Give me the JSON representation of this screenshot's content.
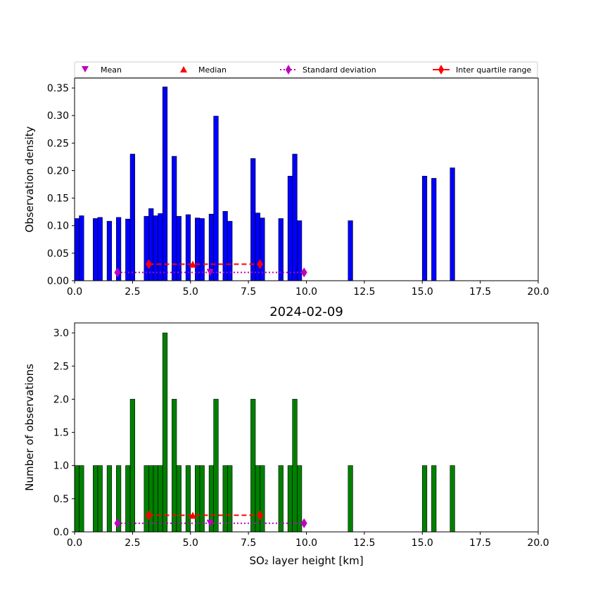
{
  "chart_data": [
    {
      "type": "bar",
      "title": "",
      "xlabel": "",
      "ylabel": "Observation density",
      "xlim": [
        0,
        20
      ],
      "ylim": [
        0,
        0.368
      ],
      "xticks": [
        "0.0",
        "2.5",
        "5.0",
        "7.5",
        "10.0",
        "12.5",
        "15.0",
        "17.5",
        "20.0"
      ],
      "xtick_values": [
        0,
        2.5,
        5,
        7.5,
        10,
        12.5,
        15,
        17.5,
        20
      ],
      "yticks": [
        "0.00",
        "0.05",
        "0.10",
        "0.15",
        "0.20",
        "0.25",
        "0.30",
        "0.35"
      ],
      "ytick_values": [
        0,
        0.05,
        0.1,
        0.15,
        0.2,
        0.25,
        0.3,
        0.35
      ],
      "bar_width": 0.2,
      "bar_color": "#0000ff",
      "bar_x": [
        0.1,
        0.3,
        0.9,
        1.1,
        1.5,
        1.9,
        2.3,
        2.5,
        3.1,
        3.3,
        3.5,
        3.7,
        3.9,
        4.3,
        4.5,
        4.9,
        5.3,
        5.5,
        5.9,
        6.1,
        6.5,
        6.7,
        7.7,
        7.9,
        8.1,
        8.9,
        9.3,
        9.5,
        9.7,
        11.9,
        15.1,
        15.5,
        16.3
      ],
      "values": [
        0.113,
        0.118,
        0.113,
        0.115,
        0.108,
        0.115,
        0.112,
        0.23,
        0.117,
        0.131,
        0.118,
        0.122,
        0.352,
        0.226,
        0.117,
        0.12,
        0.114,
        0.113,
        0.121,
        0.299,
        0.126,
        0.108,
        0.222,
        0.123,
        0.114,
        0.113,
        0.19,
        0.23,
        0.109,
        0.109,
        0.19,
        0.186,
        0.205
      ],
      "stats": {
        "mean": {
          "x": 5.85,
          "y": 0.015
        },
        "median": {
          "x": 5.1,
          "y": 0.03
        },
        "std": {
          "x": [
            1.85,
            9.9
          ],
          "y": 0.015
        },
        "iqr": {
          "x": [
            3.2,
            8.0
          ],
          "y": 0.03
        }
      }
    },
    {
      "type": "bar",
      "title": "2024-02-09",
      "xlabel": "SO₂ layer height [km]",
      "ylabel": "Number of observations",
      "xlim": [
        0,
        20
      ],
      "ylim": [
        0,
        3.15
      ],
      "xticks": [
        "0.0",
        "2.5",
        "5.0",
        "7.5",
        "10.0",
        "12.5",
        "15.0",
        "17.5",
        "20.0"
      ],
      "xtick_values": [
        0,
        2.5,
        5,
        7.5,
        10,
        12.5,
        15,
        17.5,
        20
      ],
      "yticks": [
        "0.0",
        "0.5",
        "1.0",
        "1.5",
        "2.0",
        "2.5",
        "3.0"
      ],
      "ytick_values": [
        0,
        0.5,
        1,
        1.5,
        2,
        2.5,
        3
      ],
      "bar_width": 0.2,
      "bar_color": "#008000",
      "bar_x": [
        0.1,
        0.3,
        0.9,
        1.1,
        1.5,
        1.9,
        2.3,
        2.5,
        3.1,
        3.3,
        3.5,
        3.7,
        3.9,
        4.3,
        4.5,
        4.9,
        5.3,
        5.5,
        5.9,
        6.1,
        6.5,
        6.7,
        7.7,
        7.9,
        8.1,
        8.9,
        9.3,
        9.5,
        9.7,
        11.9,
        15.1,
        15.5,
        16.3
      ],
      "values": [
        1,
        1,
        1,
        1,
        1,
        1,
        1,
        2,
        1,
        1,
        1,
        1,
        3,
        2,
        1,
        1,
        1,
        1,
        1,
        2,
        1,
        1,
        2,
        1,
        1,
        1,
        1,
        2,
        1,
        1,
        1,
        1,
        1
      ],
      "stats": {
        "mean": {
          "x": 5.85,
          "y": 0.13
        },
        "median": {
          "x": 5.1,
          "y": 0.25
        },
        "std": {
          "x": [
            1.85,
            9.9
          ],
          "y": 0.13
        },
        "iqr": {
          "x": [
            3.2,
            8.0
          ],
          "y": 0.25
        }
      }
    }
  ],
  "legend": {
    "placement": "above top plot",
    "items": [
      {
        "label": "Mean",
        "marker": "triangle-down",
        "color": "#bf00bf"
      },
      {
        "label": "Median",
        "marker": "triangle-up",
        "color": "#ff0000"
      },
      {
        "label": "Standard deviation",
        "marker": "diamond-dotted-line",
        "color": "#bf00bf"
      },
      {
        "label": "Inter quartile range",
        "marker": "diamond-dashed-line",
        "color": "#ff0000"
      }
    ]
  }
}
